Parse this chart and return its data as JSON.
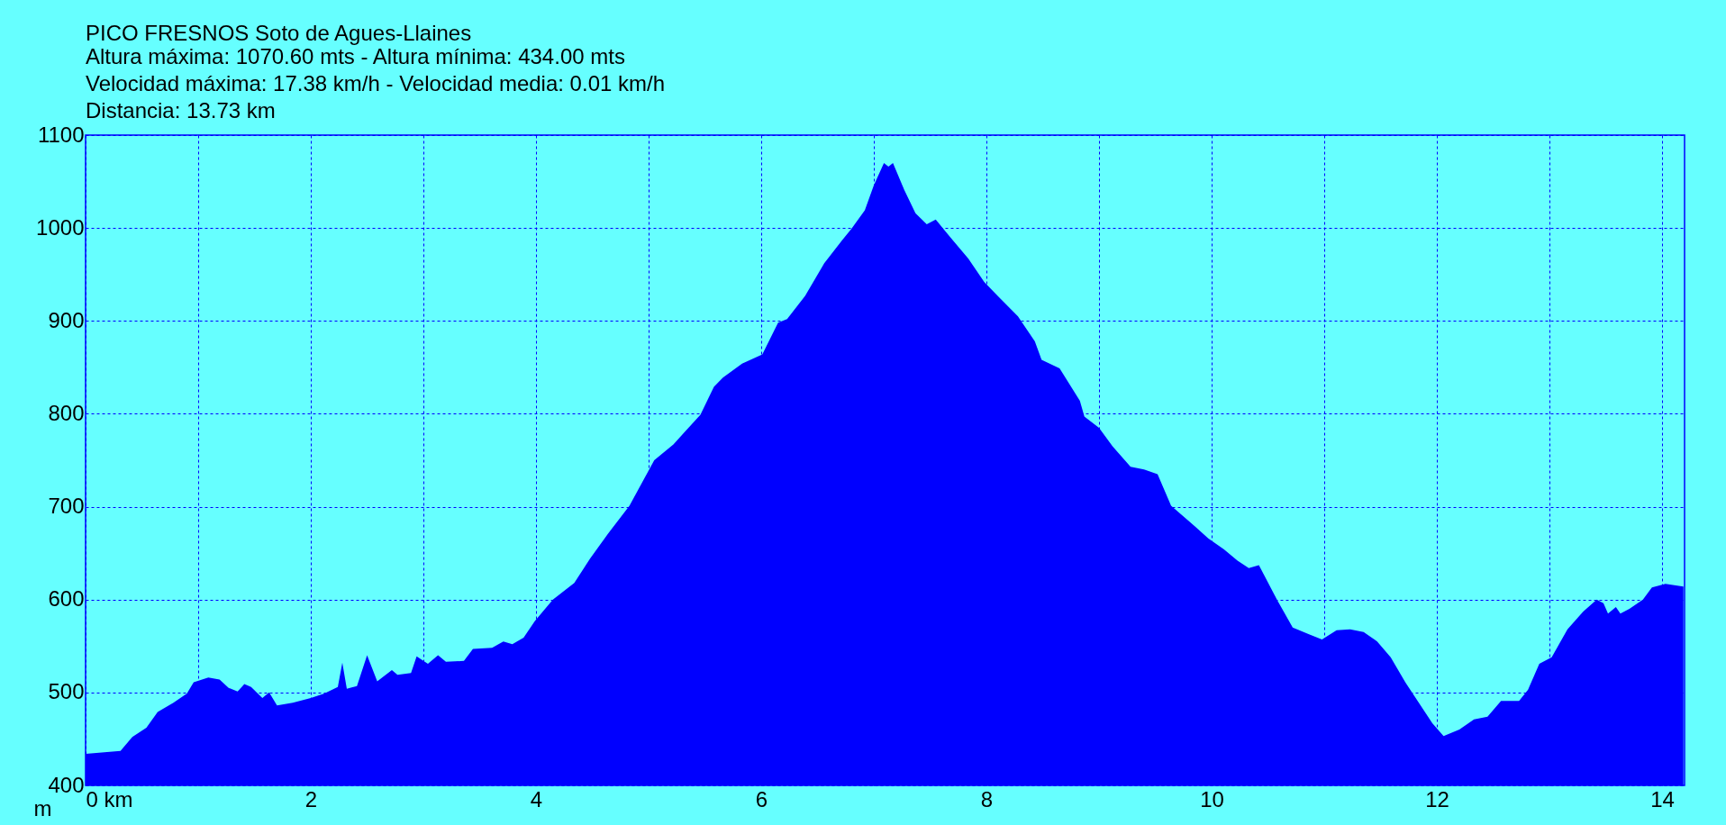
{
  "chart_data": {
    "type": "area",
    "title": "PICO FRESNOS Soto de Agues-Llaines",
    "subtitle": [
      "Altura máxima: 1070.60 mts - Altura mínima: 434.00 mts",
      "Velocidad máxima: 17.38 km/h - Velocidad media: 0.01 km/h",
      "Distancia: 13.73 km"
    ],
    "ylabel": "m",
    "xlim": [
      0,
      14.2
    ],
    "ylim": [
      400,
      1100
    ],
    "xticks": [
      {
        "value": 0,
        "label": "0 km"
      },
      {
        "value": 1,
        "label": null
      },
      2,
      {
        "value": 3,
        "label": null
      },
      4,
      {
        "value": 5,
        "label": null
      },
      6,
      {
        "value": 7,
        "label": null
      },
      8,
      {
        "value": 9,
        "label": null
      },
      10,
      {
        "value": 11,
        "label": null
      },
      12,
      {
        "value": 13,
        "label": null
      },
      14
    ],
    "yticks": [
      400,
      500,
      600,
      700,
      800,
      900,
      1000,
      1100
    ],
    "grid": true,
    "series": [
      {
        "color": "#0000ff",
        "x": [
          0,
          0.31,
          0.415,
          0.54,
          0.64,
          0.78,
          0.9,
          0.96,
          1.09,
          1.19,
          1.27,
          1.35,
          1.41,
          1.47,
          1.57,
          1.63,
          1.7,
          1.84,
          2.0,
          2.12,
          2.24,
          2.28,
          2.32,
          2.41,
          2.5,
          2.59,
          2.72,
          2.77,
          2.89,
          2.94,
          3.04,
          3.13,
          3.2,
          3.36,
          3.44,
          3.61,
          3.71,
          3.79,
          3.89,
          3.99,
          4.15,
          4.34,
          4.48,
          4.64,
          4.83,
          5.05,
          5.22,
          5.46,
          5.58,
          5.66,
          5.83,
          6.01,
          6.15,
          6.23,
          6.39,
          6.56,
          6.72,
          6.8,
          6.92,
          7.0,
          7.09,
          7.13,
          7.17,
          7.27,
          7.37,
          7.47,
          7.55,
          7.7,
          7.84,
          7.98,
          8.1,
          8.28,
          8.43,
          8.49,
          8.65,
          8.83,
          8.87,
          9.0,
          9.12,
          9.28,
          9.4,
          9.52,
          9.64,
          9.85,
          9.97,
          10.11,
          10.23,
          10.33,
          10.42,
          10.58,
          10.72,
          10.86,
          10.98,
          11.11,
          11.23,
          11.35,
          11.47,
          11.59,
          11.72,
          11.84,
          11.96,
          12.06,
          12.2,
          12.33,
          12.45,
          12.57,
          12.73,
          12.81,
          12.91,
          13.02,
          13.16,
          13.3,
          13.42,
          13.48,
          13.52,
          13.59,
          13.63,
          13.71,
          13.83,
          13.91,
          14.03,
          14.19
        ],
        "values": [
          434,
          437,
          452,
          462,
          479,
          489,
          499,
          511,
          516,
          514,
          505,
          501,
          509,
          506,
          494,
          500,
          486,
          489,
          494,
          499,
          506,
          532,
          504,
          507,
          540,
          512,
          524,
          519,
          521,
          539,
          531,
          540,
          533,
          534,
          547,
          548,
          555,
          552,
          559,
          577,
          600,
          618,
          644,
          671,
          701,
          750,
          767,
          799,
          829,
          839,
          854,
          864,
          898,
          902,
          927,
          962,
          987,
          999,
          1019,
          1046,
          1070,
          1066,
          1070,
          1041,
          1016,
          1004,
          1009,
          987,
          967,
          942,
          927,
          905,
          878,
          858,
          849,
          814,
          797,
          785,
          765,
          743,
          740,
          735,
          701,
          679,
          666,
          654,
          642,
          634,
          637,
          600,
          570,
          563,
          557,
          567,
          568,
          565,
          555,
          538,
          511,
          489,
          467,
          453,
          460,
          471,
          474,
          491,
          491,
          503,
          531,
          538,
          568,
          587,
          600,
          596,
          585,
          592,
          585,
          590,
          600,
          613,
          617,
          614
        ]
      }
    ]
  }
}
